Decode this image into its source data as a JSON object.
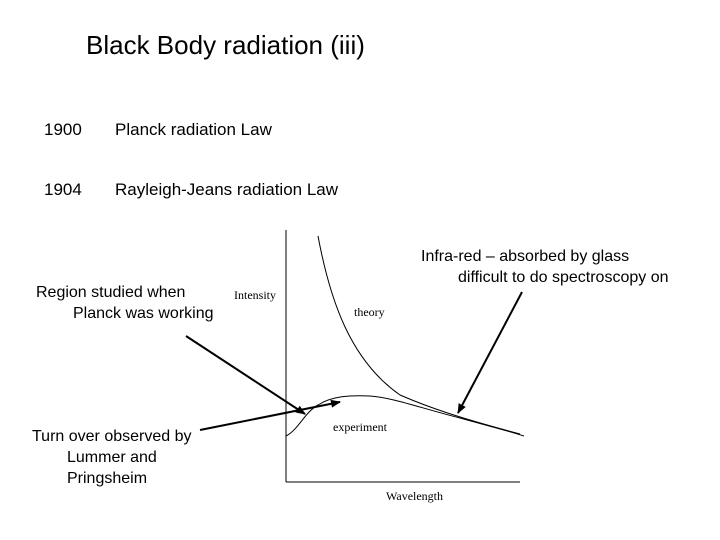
{
  "title": "Black Body radiation (iii)",
  "timeline": [
    {
      "year": "1900",
      "event": "Planck radiation Law"
    },
    {
      "year": "1904",
      "event": "Rayleigh-Jeans radiation Law"
    }
  ],
  "annotations": {
    "infrared_line1": "Infra-red – absorbed by glass",
    "infrared_line2": "difficult  to do spectroscopy on",
    "region_line1": "Region studied when",
    "region_line2": "Planck was working",
    "turnover_line1": "Turn over observed by",
    "turnover_line2": "Lummer and",
    "turnover_line3": "Pringsheim"
  },
  "graph": {
    "y_label": "Intensity",
    "x_label": "Wavelength",
    "curve_theory": "theory",
    "curve_experiment": "experiment"
  }
}
